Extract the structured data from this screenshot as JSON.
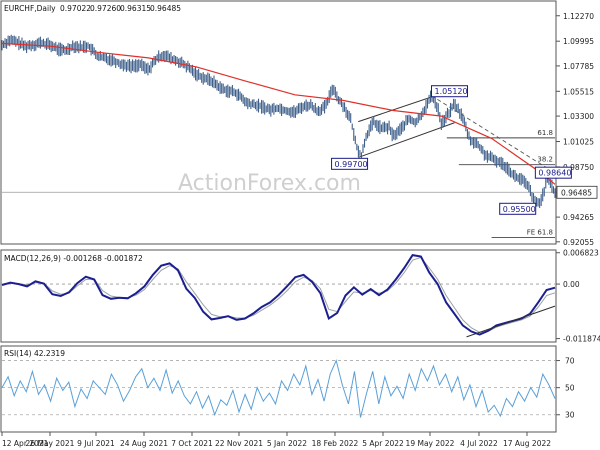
{
  "colors": {
    "price": "#3e5f8a",
    "sma": "#e0302a",
    "macd": "#1c1f8f",
    "signal": "#9aa0a6",
    "rsi": "#5aa0d8",
    "trendline": "#2f2f2f",
    "annotation_box": "#1a1a8a",
    "grid": "#c8c8c8",
    "current_price_line": "#9a9a9a"
  },
  "watermark": "ActionForex.com",
  "chart_data": [
    {
      "type": "line",
      "panel": "price",
      "title": "EURCHF,Daily",
      "ohlc_header": [
        "0.97022",
        "0.97260",
        "0.96315",
        "0.96485"
      ],
      "ylim": [
        0.9195,
        1.135
      ],
      "y_ticks": [
        "1.12270",
        "1.09995",
        "1.07785",
        "1.05515",
        "1.03300",
        "1.01025",
        "0.98750",
        "0.96485",
        "0.94265",
        "0.92055"
      ],
      "x_ticks": [
        "12 Apr 2021",
        "26 May 2021",
        "9 Jul 2021",
        "24 Aug 2021",
        "7 Oct 2021",
        "22 Nov 2021",
        "5 Jan 2022",
        "18 Feb 2022",
        "5 Apr 2022",
        "19 May 2022",
        "4 Jul 2022",
        "17 Aug 2022"
      ],
      "current_price": 0.96485,
      "series": [
        {
          "role": "price",
          "points": [
            [
              "12 Apr 2021",
              1.0965
            ],
            [
              "19 Apr 2021",
              1.101
            ],
            [
              "26 Apr 2021",
              1.099
            ],
            [
              "3 May 2021",
              1.0955
            ],
            [
              "10 May 2021",
              1.0968
            ],
            [
              "17 May 2021",
              1.0985
            ],
            [
              "26 May 2021",
              1.0965
            ],
            [
              "2 Jun 2021",
              1.093
            ],
            [
              "9 Jun 2021",
              1.0915
            ],
            [
              "16 Jun 2021",
              1.096
            ],
            [
              "23 Jun 2021",
              1.0945
            ],
            [
              "30 Jun 2021",
              1.0958
            ],
            [
              "9 Jul 2021",
              1.086
            ],
            [
              "16 Jul 2021",
              1.0845
            ],
            [
              "23 Jul 2021",
              1.083
            ],
            [
              "30 Jul 2021",
              1.0795
            ],
            [
              "9 Aug 2021",
              1.0775
            ],
            [
              "16 Aug 2021",
              1.079
            ],
            [
              "24 Aug 2021",
              1.0745
            ],
            [
              "31 Aug 2021",
              1.084
            ],
            [
              "7 Sep 2021",
              1.088
            ],
            [
              "14 Sep 2021",
              1.084
            ],
            [
              "21 Sep 2021",
              1.0815
            ],
            [
              "30 Sep 2021",
              1.076
            ],
            [
              "7 Oct 2021",
              1.0705
            ],
            [
              "14 Oct 2021",
              1.067
            ],
            [
              "21 Oct 2021",
              1.0645
            ],
            [
              "29 Oct 2021",
              1.058
            ],
            [
              "5 Nov 2021",
              1.0555
            ],
            [
              "12 Nov 2021",
              1.054
            ],
            [
              "22 Nov 2021",
              1.0445
            ],
            [
              "29 Nov 2021",
              1.043
            ],
            [
              "6 Dec 2021",
              1.0415
            ],
            [
              "13 Dec 2021",
              1.0385
            ],
            [
              "20 Dec 2021",
              1.0405
            ],
            [
              "28 Dec 2021",
              1.038
            ],
            [
              "5 Jan 2022",
              1.0365
            ],
            [
              "12 Jan 2022",
              1.0415
            ],
            [
              "19 Jan 2022",
              1.043
            ],
            [
              "26 Jan 2022",
              1.0375
            ],
            [
              "2 Feb 2022",
              1.0415
            ],
            [
              "9 Feb 2022",
              1.059
            ],
            [
              "14 Feb 2022",
              1.0475
            ],
            [
              "18 Feb 2022",
              1.043
            ],
            [
              "25 Feb 2022",
              1.03
            ],
            [
              "2 Mar 2022",
              1.007
            ],
            [
              "7 Mar 2022",
              0.997
            ],
            [
              "11 Mar 2022",
              1.015
            ],
            [
              "18 Mar 2022",
              1.0275
            ],
            [
              "25 Mar 2022",
              1.022
            ],
            [
              "1 Apr 2022",
              1.023
            ],
            [
              "5 Apr 2022",
              1.015
            ],
            [
              "12 Apr 2022",
              1.0215
            ],
            [
              "19 Apr 2022",
              1.0305
            ],
            [
              "26 Apr 2022",
              1.027
            ],
            [
              "3 May 2022",
              1.038
            ],
            [
              "10 May 2022",
              1.0512
            ],
            [
              "16 May 2022",
              1.04
            ],
            [
              "19 May 2022",
              1.026
            ],
            [
              "24 May 2022",
              1.033
            ],
            [
              "31 May 2022",
              1.044
            ],
            [
              "7 Jun 2022",
              1.033
            ],
            [
              "14 Jun 2022",
              1.012
            ],
            [
              "21 Jun 2022",
              1.008
            ],
            [
              "28 Jun 2022",
              0.9985
            ],
            [
              "4 Jul 2022",
              0.995
            ],
            [
              "11 Jul 2022",
              0.992
            ],
            [
              "18 Jul 2022",
              0.9875
            ],
            [
              "25 Jul 2022",
              0.979
            ],
            [
              "1 Aug 2022",
              0.976
            ],
            [
              "8 Aug 2022",
              0.9675
            ],
            [
              "12 Aug 2022",
              0.956
            ],
            [
              "17 Aug 2022",
              0.955
            ],
            [
              "21 Aug 2022",
              0.9665
            ],
            [
              "24 Aug 2022",
              0.976
            ],
            [
              "27 Aug 2022",
              0.972
            ],
            [
              "29 Aug 2022",
              0.9685
            ],
            [
              "31 Aug 2022",
              0.9648
            ]
          ]
        },
        {
          "role": "moving average",
          "points": [
            [
              "12 Apr 2021",
              1.098
            ],
            [
              "26 May 2021",
              1.0955
            ],
            [
              "9 Jul 2021",
              1.09
            ],
            [
              "24 Aug 2021",
              1.085
            ],
            [
              "7 Oct 2021",
              1.077
            ],
            [
              "22 Nov 2021",
              1.064
            ],
            [
              "5 Jan 2022",
              1.052
            ],
            [
              "18 Feb 2022",
              1.047
            ],
            [
              "5 Apr 2022",
              1.038
            ],
            [
              "19 May 2022",
              1.033
            ],
            [
              "4 Jul 2022",
              1.013
            ],
            [
              "17 Aug 2022",
              0.983
            ],
            [
              "31 Aug 2022",
              0.972
            ]
          ]
        }
      ],
      "annotations": [
        {
          "text": "0.99700",
          "date": "7 Mar 2022",
          "price": 0.997
        },
        {
          "text": "1.05120",
          "date": "10 May 2022",
          "price": 1.0512
        },
        {
          "text": "0.98640",
          "date": "24 Aug 2022",
          "price": 0.9864
        },
        {
          "text": "0.95500",
          "date": "17 Aug 2022",
          "price": 0.955
        }
      ],
      "fib_levels": [
        {
          "label": "61.8",
          "price": 1.0135
        },
        {
          "label": "38.2",
          "price": 0.9895
        },
        {
          "label": "FE 61.8",
          "price": 0.9245
        }
      ],
      "channel": {
        "lower": [
          [
            "4 Mar 2022",
            0.996
          ],
          [
            "31 May 2022",
            1.027
          ]
        ],
        "upper": [
          [
            "4 Mar 2022",
            1.028
          ],
          [
            "31 May 2022",
            1.057
          ]
        ]
      },
      "dashed_trendline": [
        [
          "10 May 2022",
          1.0512
        ],
        [
          "24 Aug 2022",
          0.9864
        ]
      ]
    },
    {
      "type": "line",
      "panel": "macd",
      "title": "MACD(12,26,9) -0.001268 -0.001872",
      "ylim": [
        -0.0124,
        0.0072
      ],
      "y_ticks": [
        "0.006823",
        "0.00",
        "-0.011874"
      ],
      "series": [
        {
          "role": "macd",
          "values": [
            -0.0002,
            0.0003,
            0.0,
            -0.0005,
            0.0006,
            0.0001,
            -0.0022,
            -0.0026,
            -0.0018,
            0.0002,
            0.0016,
            0.001,
            -0.0024,
            -0.0032,
            -0.003,
            -0.0031,
            -0.002,
            -0.0005,
            0.002,
            0.004,
            0.0045,
            0.003,
            -0.001,
            -0.003,
            -0.006,
            -0.0077,
            -0.0074,
            -0.007,
            -0.0078,
            -0.0075,
            -0.0064,
            -0.005,
            -0.004,
            -0.0024,
            -0.0005,
            0.0015,
            0.002,
            0.0005,
            -0.002,
            -0.0075,
            -0.0063,
            -0.0025,
            -0.0007,
            -0.0023,
            -0.0011,
            -0.0024,
            -0.0012,
            0.001,
            0.0035,
            0.0063,
            0.006,
            0.0025,
            0.0,
            -0.004,
            -0.0065,
            -0.009,
            -0.0103,
            -0.011,
            -0.0102,
            -0.009,
            -0.0085,
            -0.008,
            -0.0075,
            -0.0065,
            -0.004,
            -0.0013,
            -0.0008
          ]
        },
        {
          "role": "signal",
          "values": [
            0.0,
            0.0002,
            0.0001,
            -0.0002,
            0.0003,
            0.0002,
            -0.0015,
            -0.0022,
            -0.002,
            -0.0004,
            0.001,
            0.0011,
            -0.0014,
            -0.0026,
            -0.0029,
            -0.003,
            -0.0024,
            -0.0012,
            0.001,
            0.003,
            0.004,
            0.0033,
            0.0005,
            -0.002,
            -0.0045,
            -0.0066,
            -0.0071,
            -0.007,
            -0.0074,
            -0.0074,
            -0.0068,
            -0.0057,
            -0.0046,
            -0.0032,
            -0.0015,
            0.0005,
            0.0015,
            0.0008,
            -0.001,
            -0.0055,
            -0.006,
            -0.0038,
            -0.0017,
            -0.002,
            -0.0014,
            -0.002,
            -0.0015,
            0.0002,
            0.0025,
            0.0052,
            0.0058,
            0.0035,
            0.001,
            -0.0025,
            -0.0052,
            -0.0078,
            -0.0095,
            -0.0105,
            -0.0103,
            -0.0094,
            -0.0088,
            -0.0083,
            -0.0078,
            -0.007,
            -0.005,
            -0.0025,
            -0.0019
          ]
        }
      ],
      "trendline": [
        [
          0.84,
          -0.0115
        ],
        [
          1.0,
          -0.0048
        ]
      ]
    },
    {
      "type": "line",
      "panel": "rsi",
      "title": "RSI(14) 42.2319",
      "ylim": [
        18,
        80
      ],
      "y_ticks": [
        "70",
        "50",
        "30"
      ],
      "series": [
        {
          "role": "rsi",
          "values": [
            50,
            58,
            44,
            55,
            47,
            62,
            45,
            52,
            40,
            57,
            48,
            54,
            36,
            49,
            42,
            55,
            50,
            45,
            60,
            52,
            40,
            48,
            58,
            64,
            50,
            57,
            48,
            63,
            46,
            55,
            44,
            38,
            47,
            35,
            44,
            30,
            41,
            37,
            48,
            32,
            45,
            34,
            50,
            40,
            46,
            38,
            55,
            48,
            60,
            52,
            66,
            45,
            56,
            40,
            60,
            70,
            52,
            38,
            62,
            28,
            46,
            62,
            38,
            58,
            44,
            51,
            42,
            60,
            48,
            64,
            55,
            66,
            52,
            60,
            47,
            58,
            41,
            52,
            36,
            48,
            32,
            37,
            29,
            42,
            36,
            47,
            40,
            50,
            43,
            60,
            52,
            42
          ]
        }
      ],
      "levels": [
        70,
        50,
        30
      ]
    }
  ]
}
